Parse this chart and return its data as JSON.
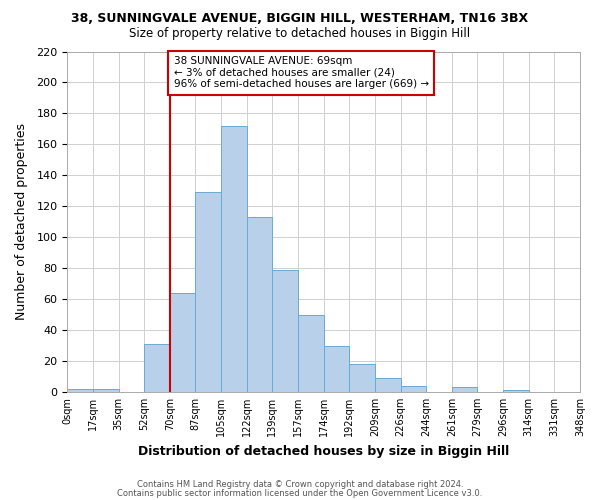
{
  "title1": "38, SUNNINGVALE AVENUE, BIGGIN HILL, WESTERHAM, TN16 3BX",
  "title2": "Size of property relative to detached houses in Biggin Hill",
  "xlabel": "Distribution of detached houses by size in Biggin Hill",
  "ylabel": "Number of detached properties",
  "bar_values": [
    2,
    2,
    0,
    31,
    64,
    129,
    172,
    113,
    79,
    50,
    30,
    18,
    9,
    4,
    0,
    3,
    0,
    1,
    0,
    0
  ],
  "bin_labels": [
    "0sqm",
    "17sqm",
    "35sqm",
    "52sqm",
    "70sqm",
    "87sqm",
    "105sqm",
    "122sqm",
    "139sqm",
    "157sqm",
    "174sqm",
    "192sqm",
    "209sqm",
    "226sqm",
    "244sqm",
    "261sqm",
    "279sqm",
    "296sqm",
    "314sqm",
    "331sqm",
    "348sqm"
  ],
  "bar_color": "#b8d0ea",
  "bar_edge_color": "#6aaad4",
  "vline_x": 4,
  "vline_color": "#cc0000",
  "annotation_text": "38 SUNNINGVALE AVENUE: 69sqm\n← 3% of detached houses are smaller (24)\n96% of semi-detached houses are larger (669) →",
  "annotation_box_color": "#ffffff",
  "annotation_box_edge": "#cc0000",
  "ylim": [
    0,
    220
  ],
  "yticks": [
    0,
    20,
    40,
    60,
    80,
    100,
    120,
    140,
    160,
    180,
    200,
    220
  ],
  "footer1": "Contains HM Land Registry data © Crown copyright and database right 2024.",
  "footer2": "Contains public sector information licensed under the Open Government Licence v3.0.",
  "bg_color": "#ffffff",
  "grid_color": "#d0d0d0"
}
